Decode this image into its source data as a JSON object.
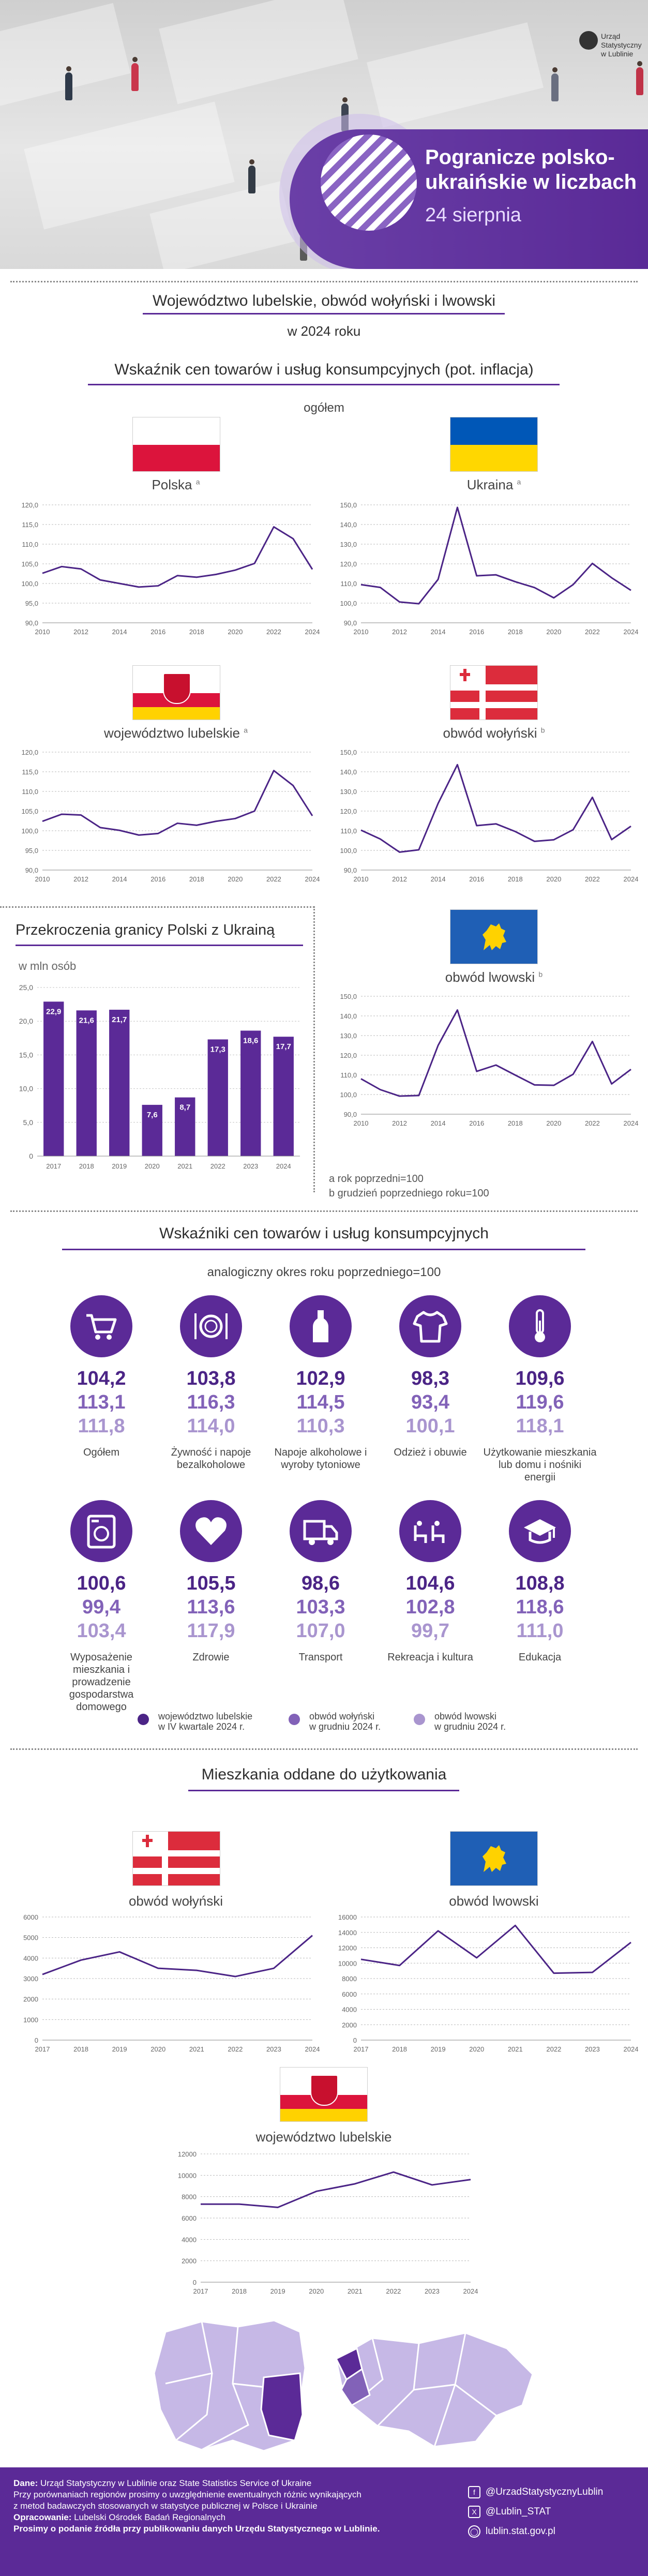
{
  "header": {
    "logo_text_1": "Urząd Statystyczny",
    "logo_text_2": "w Lublinie",
    "title_line_1": "Pogranicze polsko-",
    "title_line_2": "ukraińskie w liczbach",
    "date": "24 sierpnia"
  },
  "intro": {
    "title": "Województwo lubelskie, obwód wołyński i lwowski",
    "year": "w 2024 roku"
  },
  "inflation": {
    "title": "Wskaźnik cen towarów i usług konsumpcyjnych (pot. inflacja)",
    "subtitle": "ogółem",
    "panels": {
      "polska": {
        "label": "Polska",
        "mark": "a"
      },
      "ukraina": {
        "label": "Ukraina",
        "mark": "a"
      },
      "lubelskie": {
        "label": "województwo lubelskie",
        "mark": "a"
      },
      "wolynski": {
        "label": "obwód wołyński",
        "mark": "b"
      },
      "lwowski": {
        "label": "obwód lwowski",
        "mark": "b"
      }
    },
    "note_a": "a rok poprzedni=100",
    "note_b": "b grudzień poprzedniego roku=100"
  },
  "border": {
    "title": "Przekroczenia granicy Polski z Ukrainą",
    "unit": "w mln osób"
  },
  "cpi": {
    "title": "Wskaźniki cen towarów i usług konsumpcyjnych",
    "subtitle": "analogiczny okres roku poprzedniego=100",
    "categories": [
      {
        "label": "Ogółem",
        "v1": "104,2",
        "v2": "113,1",
        "v3": "111,8",
        "icon": "shopping-cart-icon"
      },
      {
        "label": "Żywność i napoje bezalkoholowe",
        "v1": "103,8",
        "v2": "116,3",
        "v3": "114,0",
        "icon": "plate-cutlery-icon"
      },
      {
        "label": "Napoje alkoholowe i wyroby tytoniowe",
        "v1": "102,9",
        "v2": "114,5",
        "v3": "110,3",
        "icon": "bottle-icon"
      },
      {
        "label": "Odzież i obuwie",
        "v1": "98,3",
        "v2": "93,4",
        "v3": "100,1",
        "icon": "tshirt-icon"
      },
      {
        "label": "Użytkowanie mieszkania lub domu i nośniki energii",
        "v1": "109,6",
        "v2": "119,6",
        "v3": "118,1",
        "icon": "thermometer-icon"
      },
      {
        "label": "Wyposażenie mieszkania i prowadzenie gospodarstwa domowego",
        "v1": "100,6",
        "v2": "99,4",
        "v3": "103,4",
        "icon": "washing-machine-icon"
      },
      {
        "label": "Zdrowie",
        "v1": "105,5",
        "v2": "113,6",
        "v3": "117,9",
        "icon": "heart-icon"
      },
      {
        "label": "Transport",
        "v1": "98,6",
        "v2": "103,3",
        "v3": "107,0",
        "icon": "truck-icon"
      },
      {
        "label": "Rekreacja i kultura",
        "v1": "104,6",
        "v2": "102,8",
        "v3": "99,7",
        "icon": "theatre-seats-icon"
      },
      {
        "label": "Edukacja",
        "v1": "108,8",
        "v2": "118,6",
        "v3": "111,0",
        "icon": "graduation-cap-icon"
      }
    ],
    "legend": [
      {
        "line1": "województwo lubelskie",
        "line2": "w IV kwartale 2024 r.",
        "color": "#4b2486"
      },
      {
        "line1": "obwód wołyński",
        "line2": "w grudniu 2024 r.",
        "color": "#8262b8"
      },
      {
        "line1": "obwód lwowski",
        "line2": "w grudniu 2024 r.",
        "color": "#a995cf"
      }
    ]
  },
  "housing": {
    "title": "Mieszkania oddane do użytkowania",
    "wolynski_label": "obwód wołyński",
    "lwowski_label": "obwód lwowski",
    "lubelskie_label": "województwo lubelskie"
  },
  "footer": {
    "line1_bold": "Dane:",
    "line1": "Urząd Statystyczny w Lublinie oraz State Statistics Service of Ukraine",
    "line2": "Przy porównaniach regionów prosimy o uwzględnienie ewentualnych różnic wynikających",
    "line3": "z metod badawczych stosowanych w statystyce publicznej w Polsce i Ukrainie",
    "line4_bold": "Opracowanie:",
    "line4": "Lubelski Ośrodek Badań Regionalnych",
    "line5": "Prosimy o podanie źródła przy publikowaniu danych Urzędu Statystycznego w Lublinie.",
    "social": [
      "@UrzadStatystycznyLublin",
      "@Lublin_STAT",
      "lublin.stat.gov.pl"
    ]
  },
  "colors": {
    "accent": "#5b2a97",
    "line": "#4b2486"
  },
  "chart_data": [
    {
      "id": "polska",
      "type": "line",
      "x": [
        2010,
        2011,
        2012,
        2013,
        2014,
        2015,
        2016,
        2017,
        2018,
        2019,
        2020,
        2021,
        2022,
        2023,
        2024
      ],
      "x_ticks": [
        "2010",
        "2012",
        "2014",
        "2016",
        "2018",
        "2020",
        "2022",
        "2024"
      ],
      "y_ticks": [
        "90,0",
        "95,0",
        "100,0",
        "105,0",
        "110,0",
        "115,0",
        "120,0"
      ],
      "ylim": [
        90,
        120
      ],
      "values": [
        102.6,
        104.3,
        103.7,
        100.9,
        100.0,
        99.1,
        99.4,
        102.0,
        101.6,
        102.3,
        103.4,
        105.1,
        114.4,
        111.4,
        103.6
      ]
    },
    {
      "id": "ukraina",
      "type": "line",
      "x": [
        2010,
        2011,
        2012,
        2013,
        2014,
        2015,
        2016,
        2017,
        2018,
        2019,
        2020,
        2021,
        2022,
        2023,
        2024
      ],
      "x_ticks": [
        "2010",
        "2012",
        "2014",
        "2016",
        "2018",
        "2020",
        "2022",
        "2024"
      ],
      "y_ticks": [
        "90,0",
        "100,0",
        "110,0",
        "120,0",
        "130,0",
        "140,0",
        "150,0"
      ],
      "ylim": [
        90,
        150
      ],
      "values": [
        109.4,
        108.0,
        100.6,
        99.7,
        112.1,
        148.7,
        113.9,
        114.4,
        110.9,
        107.9,
        102.7,
        109.4,
        120.2,
        112.9,
        106.5
      ]
    },
    {
      "id": "lubelskie",
      "type": "line",
      "x": [
        2010,
        2011,
        2012,
        2013,
        2014,
        2015,
        2016,
        2017,
        2018,
        2019,
        2020,
        2021,
        2022,
        2023,
        2024
      ],
      "x_ticks": [
        "2010",
        "2012",
        "2014",
        "2016",
        "2018",
        "2020",
        "2022",
        "2024"
      ],
      "y_ticks": [
        "90,0",
        "95,0",
        "100,0",
        "105,0",
        "110,0",
        "115,0",
        "120,0"
      ],
      "ylim": [
        90,
        120
      ],
      "values": [
        102.4,
        104.2,
        104.0,
        100.8,
        100.1,
        98.9,
        99.3,
        101.9,
        101.4,
        102.4,
        103.1,
        105.0,
        115.3,
        111.5,
        103.8
      ]
    },
    {
      "id": "wolynski",
      "type": "line",
      "x": [
        2010,
        2011,
        2012,
        2013,
        2014,
        2015,
        2016,
        2017,
        2018,
        2019,
        2020,
        2021,
        2022,
        2023,
        2024
      ],
      "x_ticks": [
        "2010",
        "2012",
        "2014",
        "2016",
        "2018",
        "2020",
        "2022",
        "2024"
      ],
      "y_ticks": [
        "90,0",
        "100,0",
        "110,0",
        "120,0",
        "130,0",
        "140,0",
        "150,0"
      ],
      "ylim": [
        90,
        150
      ],
      "values": [
        110.3,
        105.8,
        99.1,
        100.3,
        123.9,
        143.6,
        112.6,
        113.5,
        109.6,
        104.6,
        105.4,
        110.5,
        127.0,
        105.5,
        112.3
      ]
    },
    {
      "id": "lwowski",
      "type": "line",
      "x": [
        2010,
        2011,
        2012,
        2013,
        2014,
        2015,
        2016,
        2017,
        2018,
        2019,
        2020,
        2021,
        2022,
        2023,
        2024
      ],
      "x_ticks": [
        "2010",
        "2012",
        "2014",
        "2016",
        "2018",
        "2020",
        "2022",
        "2024"
      ],
      "y_ticks": [
        "90,0",
        "100,0",
        "110,0",
        "120,0",
        "130,0",
        "140,0",
        "150,0"
      ],
      "ylim": [
        90,
        150
      ],
      "values": [
        108.0,
        102.5,
        99.2,
        99.5,
        125.0,
        143.0,
        111.8,
        115.0,
        109.9,
        104.9,
        104.7,
        110.3,
        127.0,
        105.4,
        112.8
      ]
    },
    {
      "id": "border",
      "type": "bar",
      "categories": [
        "2017",
        "2018",
        "2019",
        "2020",
        "2021",
        "2022",
        "2023",
        "2024"
      ],
      "values": [
        22.9,
        21.6,
        21.7,
        7.6,
        8.7,
        17.3,
        18.6,
        17.7
      ],
      "labels": [
        "22,9",
        "21,6",
        "21,7",
        "7,6",
        "8,7",
        "17,3",
        "18,6",
        "17,7"
      ],
      "y_ticks": [
        "0",
        "5,0",
        "10,0",
        "15,0",
        "20,0",
        "25,0"
      ],
      "ylim": [
        0,
        25
      ]
    },
    {
      "id": "housing_wolynski",
      "type": "line",
      "x": [
        2017,
        2018,
        2019,
        2020,
        2021,
        2022,
        2023,
        2024
      ],
      "x_ticks": [
        "2017",
        "2018",
        "2019",
        "2020",
        "2021",
        "2022",
        "2023",
        "2024"
      ],
      "y_ticks": [
        "0",
        "1000",
        "2000",
        "3000",
        "4000",
        "5000",
        "6000"
      ],
      "ylim": [
        0,
        6000
      ],
      "values": [
        3200,
        3900,
        4300,
        3500,
        3400,
        3100,
        3500,
        5100
      ]
    },
    {
      "id": "housing_lwowski",
      "type": "line",
      "x": [
        2017,
        2018,
        2019,
        2020,
        2021,
        2022,
        2023,
        2024
      ],
      "x_ticks": [
        "2017",
        "2018",
        "2019",
        "2020",
        "2021",
        "2022",
        "2023",
        "2024"
      ],
      "y_ticks": [
        "0",
        "2000",
        "4000",
        "6000",
        "8000",
        "10000",
        "12000",
        "14000",
        "16000"
      ],
      "ylim": [
        0,
        16000
      ],
      "values": [
        10500,
        9700,
        14200,
        10700,
        14900,
        8700,
        8800,
        12700
      ]
    },
    {
      "id": "housing_lubelskie",
      "type": "line",
      "x": [
        2017,
        2018,
        2019,
        2020,
        2021,
        2022,
        2023,
        2024
      ],
      "x_ticks": [
        "2017",
        "2018",
        "2019",
        "2020",
        "2021",
        "2022",
        "2023",
        "2024"
      ],
      "y_ticks": [
        "0",
        "2000",
        "4000",
        "6000",
        "8000",
        "10000",
        "12000"
      ],
      "ylim": [
        0,
        12000
      ],
      "values": [
        7300,
        7300,
        7000,
        8500,
        9200,
        10300,
        9100,
        9600
      ]
    }
  ]
}
